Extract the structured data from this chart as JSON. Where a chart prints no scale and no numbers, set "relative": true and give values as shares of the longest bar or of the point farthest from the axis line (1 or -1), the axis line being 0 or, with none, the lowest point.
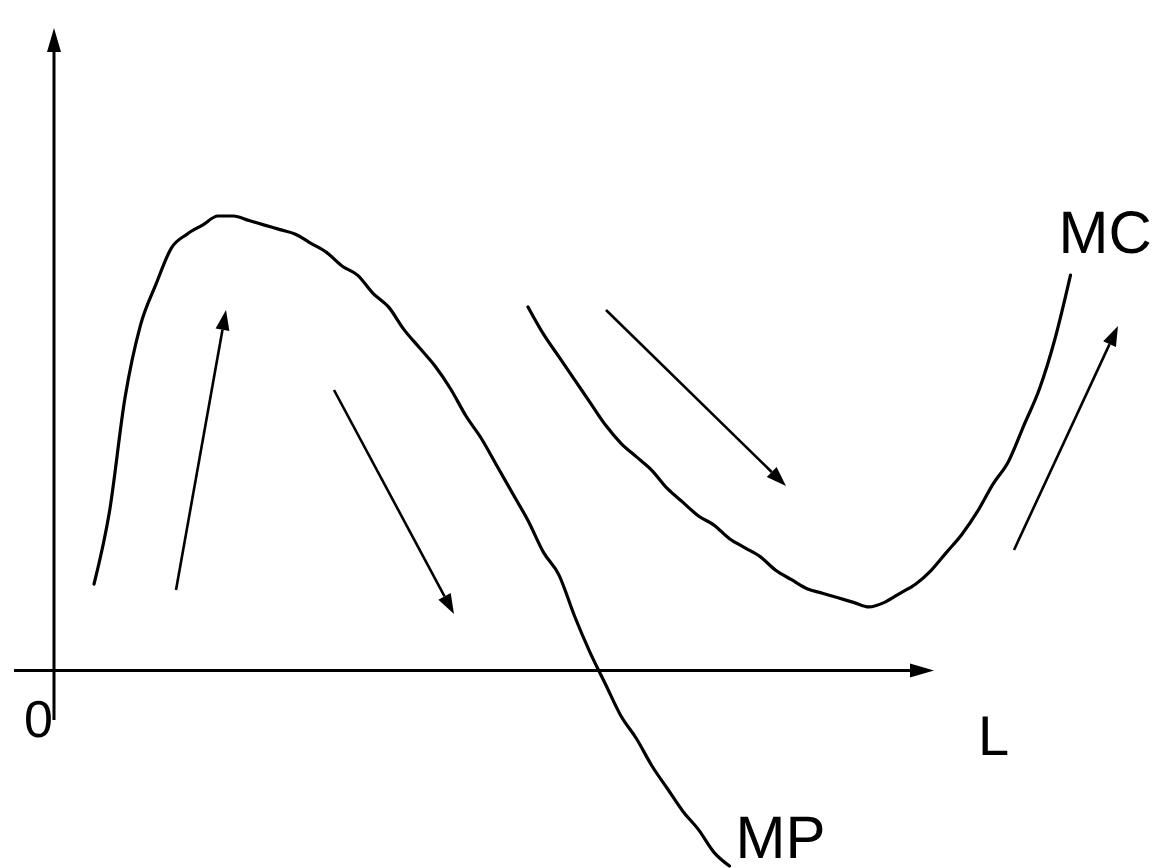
{
  "chart_data": {
    "type": "line",
    "relative": true,
    "xlabel": "L",
    "annotations": [
      "0"
    ],
    "categories": [
      null,
      null,
      null,
      null,
      null,
      null,
      null,
      null,
      null,
      null,
      null,
      null,
      null,
      null,
      null,
      null,
      null,
      null,
      null,
      null,
      null,
      null,
      null,
      null,
      null,
      null,
      null,
      null,
      null,
      null,
      null,
      null,
      null,
      null,
      null,
      null,
      null,
      null,
      null,
      null,
      null,
      null,
      null,
      null,
      null,
      null,
      null,
      null,
      null,
      null,
      null,
      null,
      null,
      null,
      null,
      null,
      null,
      null,
      null,
      null,
      null,
      null,
      null,
      null
    ],
    "series": [
      {
        "name": "MP",
        "color": "#000000",
        "values": [
          0.19,
          0.35,
          0.6,
          0.76,
          0.85,
          0.93,
          0.96,
          0.98,
          1,
          1,
          0.99,
          0.98,
          0.97,
          0.96,
          0.94,
          0.92,
          0.89,
          0.87,
          0.83,
          0.8,
          0.75,
          0.71,
          0.67,
          0.62,
          0.56,
          0.51,
          0.45,
          0.39,
          0.33,
          0.26,
          0.21,
          0.12,
          0.04,
          -0.03,
          -0.1,
          -0.15,
          -0.21,
          -0.26,
          -0.31,
          -0.35,
          -0.4,
          -0.43,
          null,
          null,
          null,
          null,
          null,
          null,
          null,
          null,
          null,
          null,
          null,
          null,
          null,
          null,
          null,
          null,
          null,
          null,
          null,
          null,
          null,
          null
        ]
      },
      {
        "name": "MC",
        "color": "#000000",
        "values": [
          null,
          null,
          null,
          null,
          null,
          null,
          null,
          null,
          null,
          null,
          null,
          null,
          null,
          null,
          null,
          null,
          null,
          null,
          null,
          null,
          null,
          null,
          null,
          null,
          null,
          null,
          null,
          null,
          0.8,
          0.74,
          0.69,
          0.64,
          0.59,
          0.54,
          0.5,
          0.47,
          0.44,
          0.4,
          0.37,
          0.34,
          0.32,
          0.29,
          0.27,
          0.25,
          0.22,
          0.2,
          0.18,
          0.17,
          0.16,
          0.15,
          0.14,
          0.15,
          0.17,
          0.19,
          0.22,
          0.26,
          0.3,
          0.35,
          0.41,
          0.46,
          0.54,
          0.62,
          0.73,
          0.87
        ]
      }
    ]
  }
}
